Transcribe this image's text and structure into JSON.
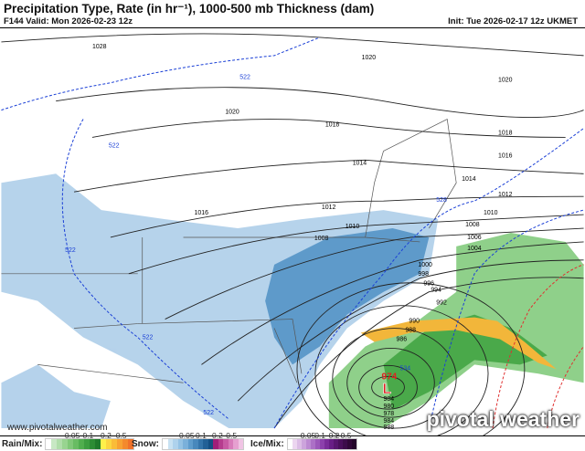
{
  "header": {
    "title": "Precipitation Type, Rate (in hr⁻¹), 1000-500 mb Thickness (dam)",
    "valid": "F144 Valid: Mon 2026-02-23 12z",
    "init": "Init: Tue 2026-02-17 12z UKMET"
  },
  "map": {
    "isobar_labels": [
      "1028",
      "1020",
      "1020",
      "1020",
      "1018",
      "1018",
      "1016",
      "1016",
      "1014",
      "1014",
      "1012",
      "1012",
      "1010",
      "1010",
      "1008",
      "1008",
      "1006",
      "1004",
      "1000",
      "998",
      "996",
      "994",
      "992",
      "990",
      "988",
      "986",
      "984",
      "980",
      "978",
      "984",
      "988"
    ],
    "thickness_labels": [
      "522",
      "522",
      "522",
      "522",
      "522",
      "528",
      "534"
    ],
    "low": {
      "symbol": "L",
      "pressure": "974",
      "color": "#e02020"
    },
    "colors": {
      "snow": "#7fb2dc",
      "snow_heavy": "#2e6da4",
      "rain": "#5cb85c",
      "rain_heavy": "#2a8a3a",
      "mix": "#f2b63a",
      "isobar": "#222222",
      "thickness": "#1a3fd6",
      "thickness_warm": "#e03030"
    }
  },
  "watermark": "www.pivotalweather.com",
  "brand": "pivotal weather",
  "legend": {
    "rain": {
      "label": "Rain/Mix:",
      "ticks": [
        "0.05",
        "0.1",
        "0.2",
        "0.5"
      ],
      "colors": [
        "#ffffff",
        "#c8e8c4",
        "#b0deaa",
        "#98d490",
        "#80c878",
        "#68bc62",
        "#50ae4e",
        "#3c9e40",
        "#2c8c34",
        "#1e7a2a",
        "#fff04a",
        "#fcd640",
        "#fabc38",
        "#f8a232",
        "#f48a2c",
        "#f0722a"
      ]
    },
    "snow": {
      "label": "Snow:",
      "ticks": [
        "0.05",
        "0.1",
        "0.2",
        "0.5"
      ],
      "colors": [
        "#ffffff",
        "#c8e2f2",
        "#aed2ec",
        "#94c2e4",
        "#7ab0da",
        "#5e9ccc",
        "#4888bc",
        "#3474aa",
        "#226096",
        "#144e82",
        "#a01e78",
        "#b63c8e",
        "#c85aa4",
        "#d87cba",
        "#e6a0d0",
        "#f0c4e4"
      ]
    },
    "ice": {
      "label": "Ice/Mix:",
      "ticks": [
        "0.05",
        "0.1",
        "0.2",
        "0.5"
      ],
      "colors": [
        "#ffffff",
        "#ecd6f0",
        "#dcbde6",
        "#cca4dc",
        "#bc8ad2",
        "#ac70c6",
        "#9c58ba",
        "#8c40ac",
        "#7a2c9a",
        "#681e86",
        "#581670",
        "#4a105c",
        "#3c0c4a",
        "#300838",
        "#24062a"
      ]
    }
  }
}
